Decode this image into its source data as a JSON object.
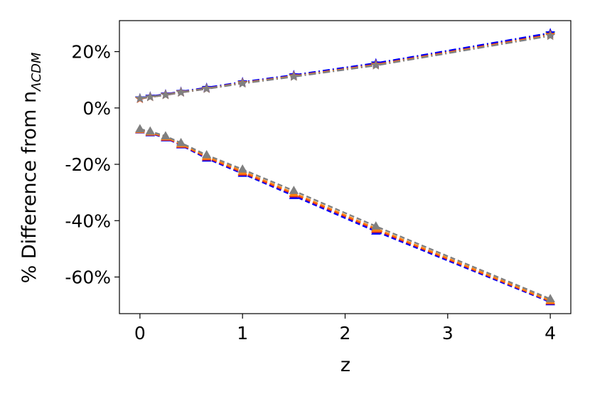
{
  "chart_data": {
    "type": "line",
    "title": "",
    "xlabel": "z",
    "ylabel": {
      "main": "% Difference from n",
      "subscript": "ΛCDM"
    },
    "xlim": [
      -0.2,
      4.2
    ],
    "ylim": [
      -73,
      31
    ],
    "xticks": [
      0,
      1,
      2,
      3,
      4
    ],
    "xtick_labels": [
      "0",
      "1",
      "2",
      "3",
      "4"
    ],
    "yticks": [
      20,
      0,
      -20,
      -40,
      -60
    ],
    "ytick_labels": [
      "20%",
      "0%",
      "-20%",
      "-40%",
      "-60%"
    ],
    "grid": false,
    "legend": "none",
    "x": [
      0,
      0.1,
      0.25,
      0.4,
      0.65,
      1.0,
      1.5,
      2.3,
      4.0
    ],
    "series": [
      {
        "group": "upper",
        "marker": "star",
        "linestyle": "dashdot",
        "color": "#2ca02c",
        "values": [
          3.4,
          4.0,
          4.8,
          5.7,
          7.0,
          9.0,
          11.5,
          15.7,
          26.4
        ]
      },
      {
        "group": "upper",
        "marker": "star",
        "linestyle": "dashdot",
        "color": "#0000ff",
        "values": [
          3.5,
          4.1,
          4.9,
          5.8,
          7.2,
          9.2,
          11.7,
          15.9,
          26.6
        ]
      },
      {
        "group": "upper",
        "marker": "star",
        "linestyle": "dashdot",
        "color": "#d62728",
        "values": [
          3.2,
          3.9,
          4.6,
          5.5,
          6.8,
          8.8,
          11.3,
          15.4,
          26.0
        ]
      },
      {
        "group": "upper",
        "marker": "star",
        "linestyle": "dashdot",
        "color": "#ff7f0e",
        "values": [
          3.3,
          3.9,
          4.7,
          5.6,
          6.9,
          8.9,
          11.3,
          15.3,
          25.8
        ]
      },
      {
        "group": "upper",
        "marker": "star",
        "linestyle": "dashdot",
        "color": "#808080",
        "values": [
          3.4,
          3.9,
          4.6,
          5.5,
          6.8,
          8.7,
          11.1,
          15.1,
          25.6
        ]
      },
      {
        "group": "lower",
        "marker": "triangle",
        "linestyle": "dashed",
        "color": "#0000ff",
        "values": [
          -7.9,
          -8.9,
          -10.7,
          -13.2,
          -17.9,
          -23.3,
          -31.2,
          -43.8,
          -68.9
        ]
      },
      {
        "group": "lower",
        "marker": "triangle",
        "linestyle": "dashed",
        "color": "#d62728",
        "values": [
          -7.8,
          -8.7,
          -10.5,
          -13.0,
          -17.5,
          -22.9,
          -30.6,
          -43.2,
          -68.6
        ]
      },
      {
        "group": "lower",
        "marker": "triangle",
        "linestyle": "dashed",
        "color": "#ff7f0e",
        "values": [
          -7.7,
          -8.6,
          -10.3,
          -12.8,
          -17.2,
          -22.5,
          -30.2,
          -42.8,
          -68.4
        ]
      },
      {
        "group": "lower",
        "marker": "triangle",
        "linestyle": "dashed",
        "color": "#808080",
        "values": [
          -7.5,
          -8.3,
          -10.0,
          -12.4,
          -16.7,
          -21.8,
          -29.4,
          -42.0,
          -67.8
        ]
      }
    ]
  }
}
